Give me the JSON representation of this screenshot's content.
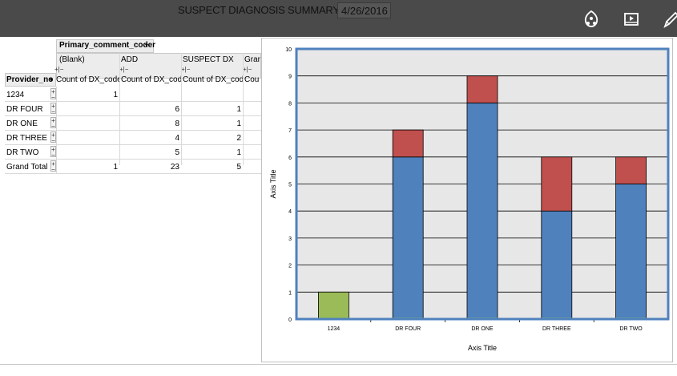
{
  "header": {
    "title": "SUSPECT DIAGNOSIS SUMMARY FOR",
    "date": "4/26/2016",
    "icons": [
      "refresh-icon",
      "media-icon",
      "edit-pencil-icon"
    ]
  },
  "pivot": {
    "column_field": "Primary_comment_coder",
    "row_field": "Provider_no",
    "column_labels": [
      "(Blank)",
      "ADD",
      "SUSPECT DX",
      "Gran"
    ],
    "value_label": "Count of DX_code",
    "value_label_short": "Cou",
    "rows": [
      {
        "label": "1234",
        "blank": "1",
        "add": "",
        "suspect": ""
      },
      {
        "label": "DR FOUR",
        "blank": "",
        "add": "6",
        "suspect": "1"
      },
      {
        "label": "DR ONE",
        "blank": "",
        "add": "8",
        "suspect": "1"
      },
      {
        "label": "DR THREE",
        "blank": "",
        "add": "4",
        "suspect": "2"
      },
      {
        "label": "DR TWO",
        "blank": "",
        "add": "5",
        "suspect": "1"
      },
      {
        "label": "Grand Total",
        "blank": "1",
        "add": "23",
        "suspect": "5"
      }
    ]
  },
  "chart_data": {
    "type": "bar",
    "stacked": true,
    "categories": [
      "1234",
      "DR FOUR",
      "DR ONE",
      "DR THREE",
      "DR TWO"
    ],
    "series": [
      {
        "values": [
          1,
          0,
          0,
          0,
          0
        ],
        "color": "#9bbb59"
      },
      {
        "values": [
          0,
          6,
          8,
          4,
          5
        ],
        "color": "#4f81bd"
      },
      {
        "values": [
          0,
          1,
          1,
          2,
          1
        ],
        "color": "#c0504d"
      }
    ],
    "ylim": [
      0,
      10
    ],
    "yticks": [
      "0",
      "1",
      "2",
      "3",
      "4",
      "5",
      "6",
      "7",
      "8",
      "9",
      "10"
    ],
    "xlabel": "Axis Title",
    "ylabel": "Axis Title",
    "grid": true,
    "plot_bg": "#e7e7e7",
    "plot_border": "#4f81bd"
  }
}
